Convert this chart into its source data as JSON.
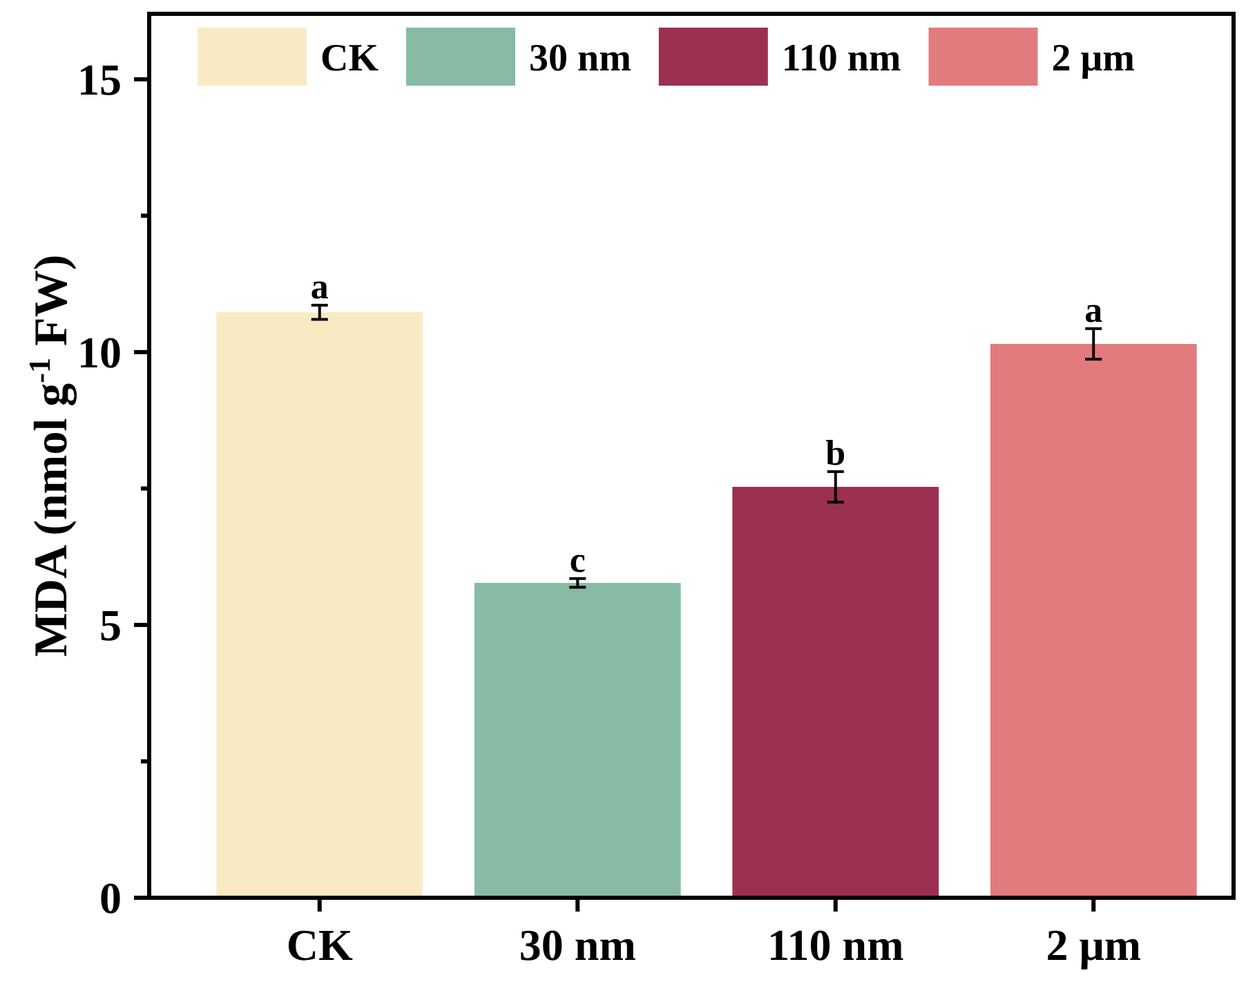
{
  "chart_data": {
    "type": "bar",
    "ylabel": "MDA (nmol g$^{-1}$ FW)",
    "categories": [
      "CK",
      "30 nm",
      "110 nm",
      "2 μm"
    ],
    "series": [
      {
        "name": "CK",
        "color": "#f8ebc4",
        "values": [
          10.73,
          null,
          null,
          null
        ],
        "errors": [
          0.13,
          null,
          null,
          null
        ]
      },
      {
        "name": "30 nm",
        "color": "#88bba4",
        "values": [
          null,
          5.77,
          null,
          null
        ],
        "errors": [
          null,
          0.08,
          null,
          null
        ]
      },
      {
        "name": "110 nm",
        "color": "#9b3050",
        "values": [
          null,
          null,
          7.53,
          null
        ],
        "errors": [
          null,
          null,
          0.28,
          null
        ]
      },
      {
        "name": "2 μm",
        "color": "#e27b7d",
        "values": [
          null,
          null,
          null,
          10.15
        ],
        "errors": [
          null,
          null,
          null,
          0.28
        ]
      }
    ],
    "ylim": [
      0,
      16.2
    ],
    "yticks": [
      0,
      {
        "value": 2.5,
        "label": null
      },
      5,
      {
        "value": 7.5,
        "label": null
      },
      10,
      {
        "value": 12.5,
        "label": null
      },
      15
    ],
    "annotations": [
      {
        "text": "a",
        "x": "CK",
        "y": 10.86
      },
      {
        "text": "c",
        "x": "30 nm",
        "y": 5.85
      },
      {
        "text": "b",
        "x": "110 nm",
        "y": 7.81
      },
      {
        "text": "a",
        "x": "2 μm",
        "y": 10.43
      }
    ],
    "legend": "top",
    "grid": false
  }
}
